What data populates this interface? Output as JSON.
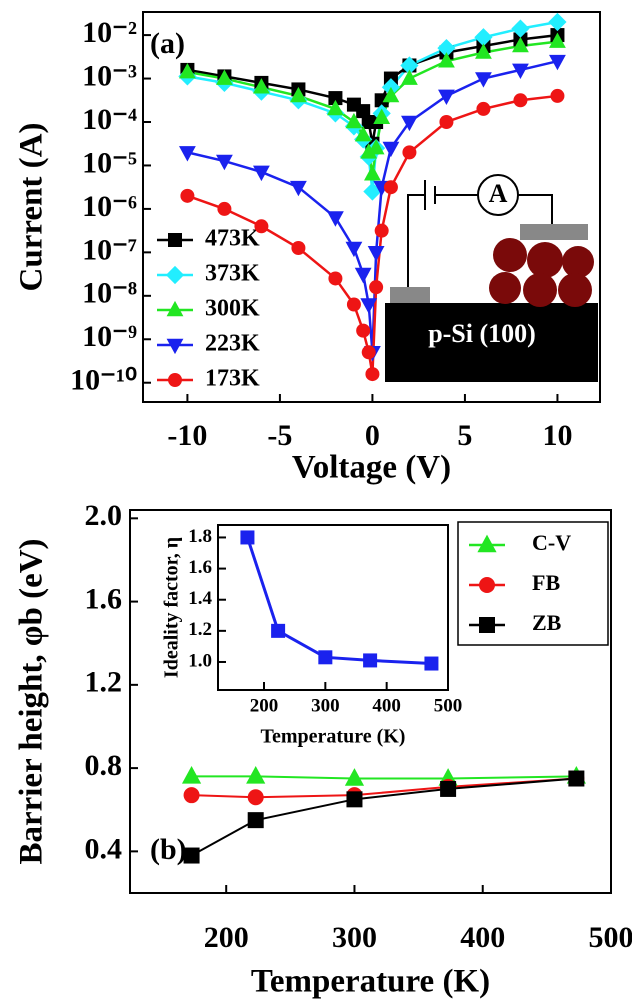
{
  "chart_data": [
    {
      "type": "line",
      "log_y": true,
      "xlabel": "Voltage (V)",
      "ylabel": "Current (A)",
      "legend": "lower left",
      "annotations": [
        "(a)",
        "A",
        "p-Si (100)"
      ],
      "x": [
        -10,
        -8,
        -6,
        -4,
        -2,
        -1,
        -0.5,
        -0.2,
        0,
        0.2,
        0.5,
        1,
        2,
        4,
        6,
        8,
        10
      ],
      "xlim": [
        -12.4,
        12.3
      ],
      "xticks": [
        -10,
        -5,
        0,
        5,
        10
      ],
      "ylim": [
        3.6e-11,
        0.034
      ],
      "yticks": [
        {
          "value": 0.01,
          "label": "10⁻²"
        },
        {
          "value": 0.001,
          "label": "10⁻³"
        },
        {
          "value": 0.0001,
          "label": "10⁻⁴"
        },
        {
          "value": 1e-05,
          "label": "10⁻⁵"
        },
        {
          "value": 1e-06,
          "label": "10⁻⁶"
        },
        {
          "value": 1e-07,
          "label": "10⁻⁷"
        },
        {
          "value": 1e-08,
          "label": "10⁻⁸"
        },
        {
          "value": 1e-09,
          "label": "10⁻⁹"
        },
        {
          "value": 1e-10,
          "label": "10⁻¹⁰"
        }
      ],
      "series": [
        {
          "name": "473K",
          "color": "#000000",
          "marker": "square",
          "values": [
            0.00158,
            0.00112,
            0.000794,
            0.000562,
            0.000355,
            0.000251,
            0.000178,
            0.0001,
            3.16e-05,
            0.0001,
            0.000316,
            0.001,
            0.002,
            0.00398,
            0.00562,
            0.00794,
            0.01
          ]
        },
        {
          "name": "373K",
          "color": "#22eeff",
          "marker": "diamond",
          "values": [
            0.00112,
            0.000794,
            0.000501,
            0.000316,
            0.000158,
            7.94e-05,
            3.98e-05,
            1.58e-05,
            2.51e-06,
            2.51e-05,
            0.000158,
            0.000631,
            0.002,
            0.00501,
            0.00891,
            0.0141,
            0.02
          ]
        },
        {
          "name": "300K",
          "color": "#22e622",
          "marker": "triangle-up",
          "values": [
            0.00141,
            0.001,
            0.000631,
            0.000398,
            0.0002,
            0.0001,
            5.01e-05,
            2e-05,
            6.31e-06,
            2.51e-05,
            0.000126,
            0.000398,
            0.001,
            0.00251,
            0.00398,
            0.00562,
            0.00708
          ]
        },
        {
          "name": "223K",
          "color": "#1a22ee",
          "marker": "triangle-down",
          "values": [
            2e-05,
            1.26e-05,
            7.08e-06,
            3.16e-06,
            6.31e-07,
            1.26e-07,
            3.16e-08,
            6.31e-09,
            5.01e-10,
            1e-07,
            3.16e-06,
            2.51e-05,
            0.0001,
            0.000398,
            0.001,
            0.00158,
            0.00251
          ]
        },
        {
          "name": "173K",
          "color": "#ee1515",
          "marker": "circle",
          "values": [
            2e-06,
            1e-06,
            3.98e-07,
            1.26e-07,
            2.51e-08,
            6.31e-09,
            1.58e-09,
            5.01e-10,
            1.58e-10,
            1.58e-08,
            3.16e-07,
            3.16e-06,
            2e-05,
            0.0001,
            0.0002,
            0.000316,
            0.000398
          ]
        }
      ]
    },
    {
      "type": "line",
      "xlabel": "Temperature (K)",
      "ylabel": "Barrier height, φb (eV)",
      "legend": "upper right",
      "annotations": [
        "(b)"
      ],
      "x": [
        173,
        223,
        300,
        373,
        473
      ],
      "xlim": [
        125,
        500
      ],
      "xticks": [
        200,
        300,
        400,
        500
      ],
      "ylim": [
        0.2,
        2.04
      ],
      "yticks": [
        0.4,
        0.8,
        1.2,
        1.6,
        {
          "value": 2,
          "label": "2.0"
        }
      ],
      "series": [
        {
          "name": "C-V",
          "color": "#22e622",
          "marker": "triangle-up",
          "values": [
            0.76,
            0.76,
            0.75,
            0.75,
            0.76
          ]
        },
        {
          "name": "FB",
          "color": "#ee1515",
          "marker": "circle",
          "values": [
            0.67,
            0.66,
            0.67,
            0.71,
            0.75
          ]
        },
        {
          "name": "ZB",
          "color": "#000000",
          "marker": "square",
          "values": [
            0.38,
            0.55,
            0.65,
            0.7,
            0.75
          ]
        }
      ]
    },
    {
      "type": "line",
      "xlabel": "Temperature (K)",
      "ylabel": "Ideality factor, η",
      "x": [
        173,
        223,
        300,
        373,
        473
      ],
      "xlim": [
        125,
        500
      ],
      "xticks": [
        200,
        300,
        400,
        500
      ],
      "ylim": [
        0.82,
        1.88
      ],
      "yticks": [
        {
          "value": 1,
          "label": "1.0"
        },
        1.2,
        1.4,
        1.6,
        1.8
      ],
      "series": [
        {
          "color": "#1a22ee",
          "marker": "square",
          "values": [
            1.8,
            1.2,
            1.03,
            1.01,
            0.99
          ]
        }
      ]
    }
  ]
}
